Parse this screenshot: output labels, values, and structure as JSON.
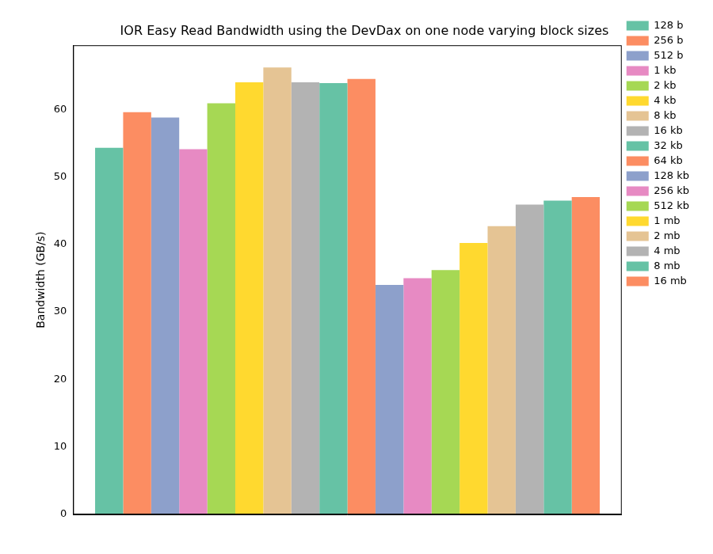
{
  "chart_data": {
    "type": "bar",
    "title": "IOR Easy Read Bandwidth using the DevDax on one node varying block sizes",
    "y_label": "Bandwidth (GB/s)",
    "categories": [
      null
    ],
    "series": [
      {
        "name": "128 b",
        "color": "#66c2a5",
        "values": [
          54.3
        ]
      },
      {
        "name": "256 b",
        "color": "#fc8d62",
        "values": [
          59.6
        ]
      },
      {
        "name": "512 b",
        "color": "#8da0cb",
        "values": [
          58.8
        ]
      },
      {
        "name": "1 kb",
        "color": "#e78ac3",
        "values": [
          54.1
        ]
      },
      {
        "name": "2 kb",
        "color": "#a6d854",
        "values": [
          60.9
        ]
      },
      {
        "name": "4 kb",
        "color": "#ffd92f",
        "values": [
          64.0
        ]
      },
      {
        "name": "8 kb",
        "color": "#e5c494",
        "values": [
          66.2
        ]
      },
      {
        "name": "16 kb",
        "color": "#b3b3b3",
        "values": [
          64.0
        ]
      },
      {
        "name": "32 kb",
        "color": "#66c2a5",
        "values": [
          63.9
        ]
      },
      {
        "name": "64 kb",
        "color": "#fc8d62",
        "values": [
          64.5
        ]
      },
      {
        "name": "128 kb",
        "color": "#8da0cb",
        "values": [
          34.0
        ]
      },
      {
        "name": "256 kb",
        "color": "#e78ac3",
        "values": [
          35.0
        ]
      },
      {
        "name": "512 kb",
        "color": "#a6d854",
        "values": [
          36.2
        ]
      },
      {
        "name": "1 mb",
        "color": "#ffd92f",
        "values": [
          40.2
        ]
      },
      {
        "name": "2 mb",
        "color": "#e5c494",
        "values": [
          42.7
        ]
      },
      {
        "name": "4 mb",
        "color": "#b3b3b3",
        "values": [
          45.9
        ]
      },
      {
        "name": "8 mb",
        "color": "#66c2a5",
        "values": [
          46.5
        ]
      },
      {
        "name": "16 mb",
        "color": "#fc8d62",
        "values": [
          47.0
        ]
      }
    ],
    "ylim": [
      0,
      69.5
    ],
    "yticks": [
      0,
      10,
      20,
      30,
      40,
      50,
      60
    ],
    "grid": false,
    "legend": "upper right",
    "tick_labels": "y"
  }
}
